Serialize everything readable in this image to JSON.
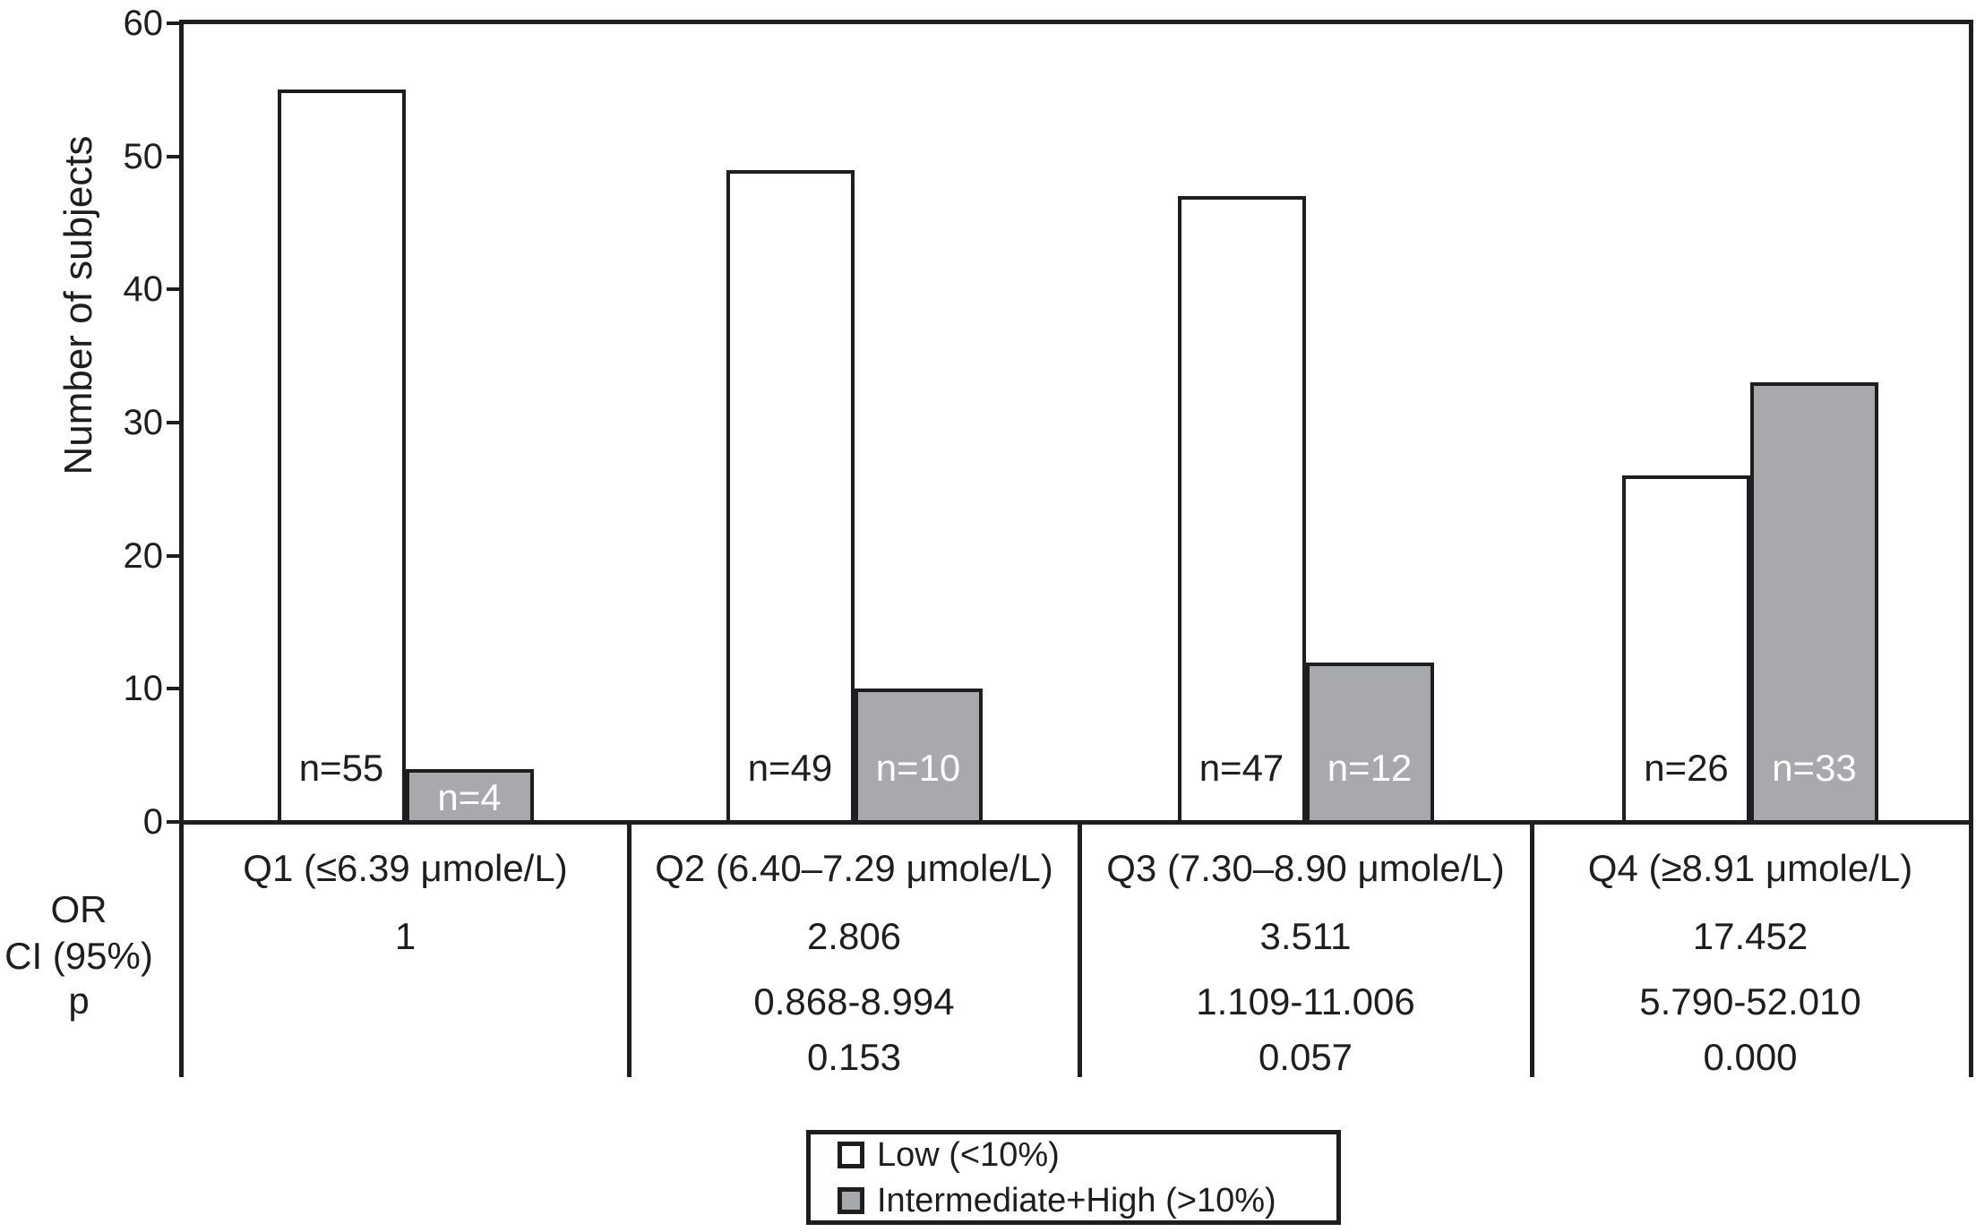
{
  "chart_data": {
    "type": "bar",
    "ylabel": "Number of subjects",
    "ylim": [
      0,
      60
    ],
    "yticks": [
      0,
      10,
      20,
      30,
      40,
      50,
      60
    ],
    "grid": false,
    "legend_position": "bottom-center",
    "categories": [
      "Q1 (≤6.39 μmole/L)",
      "Q2 (6.40–7.29 μmole/L)",
      "Q3 (7.30–8.90 μmole/L)",
      "Q4 (≥8.91 μmole/L)"
    ],
    "series": [
      {
        "name": "Low (<10%)",
        "color": "#ffffff",
        "values": [
          55,
          49,
          47,
          26
        ],
        "bar_labels": [
          "n=55",
          "n=49",
          "n=47",
          "n=26"
        ],
        "bar_label_color": "#1e1e20"
      },
      {
        "name": "Intermediate+High (>10%)",
        "color": "#a8a9ad",
        "values": [
          4,
          10,
          12,
          33
        ],
        "bar_labels": [
          "n=4",
          "n=10",
          "n=12",
          "n=33"
        ],
        "bar_label_color": "#ffffff"
      }
    ],
    "stats_table": {
      "row_labels": [
        "OR",
        "CI (95%)",
        "p"
      ],
      "rows": [
        [
          "1",
          "2.806",
          "3.511",
          "17.452"
        ],
        [
          "",
          "0.868-8.994",
          "1.109-11.006",
          "5.790-52.010"
        ],
        [
          "",
          "0.153",
          "0.057",
          "0.000"
        ]
      ]
    }
  },
  "colors": {
    "line": "#1e1e20",
    "bar_low_fill": "#ffffff",
    "bar_intermediate_high_fill": "#a8a9ad",
    "background": "#ffffff"
  }
}
